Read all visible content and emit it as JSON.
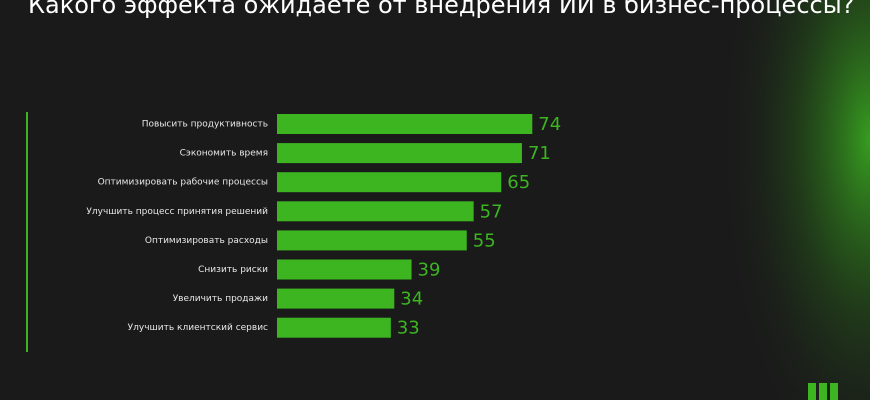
{
  "chart_data": {
    "type": "hbar",
    "title": "Какого эффекта ожидаете от внедрения ИИ в бизнес-процессы?",
    "categories": [
      "Повысить продуктивность",
      "Сэкономить время",
      "Оптимизировать рабочие процессы",
      "Улучшить процесс принятия решений",
      "Оптимизировать расходы",
      "Снизить риски",
      "Увеличить продажи",
      "Улучшить клиентский сервис"
    ],
    "values": [
      74,
      71,
      65,
      57,
      55,
      39,
      34,
      33
    ],
    "color": "#3cb521"
  }
}
